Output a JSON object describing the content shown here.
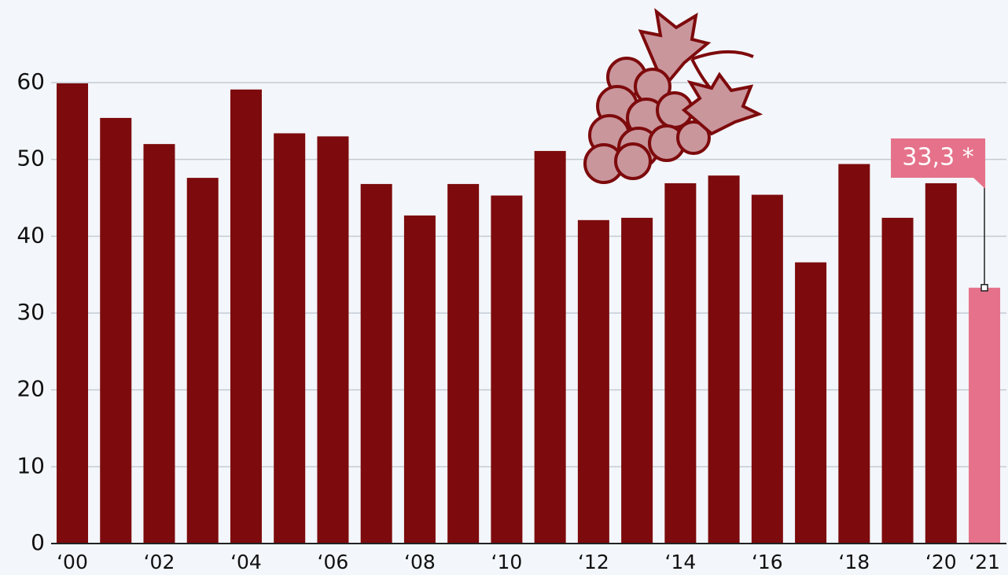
{
  "chart_data": {
    "type": "bar",
    "categories": [
      "‘00",
      null,
      "‘02",
      null,
      "‘04",
      null,
      "‘06",
      null,
      "‘08",
      null,
      "‘10",
      null,
      "‘12",
      null,
      "‘14",
      null,
      "‘16",
      null,
      "‘18",
      null,
      "‘20",
      "‘21"
    ],
    "values": [
      59.9,
      55.4,
      52.0,
      47.6,
      59.1,
      53.4,
      53.0,
      46.8,
      42.7,
      46.8,
      45.3,
      51.1,
      42.1,
      42.4,
      46.9,
      47.9,
      45.4,
      36.6,
      49.4,
      42.4,
      46.9,
      33.3
    ],
    "value_labels": [
      null,
      null,
      null,
      null,
      null,
      null,
      null,
      null,
      null,
      null,
      null,
      null,
      null,
      null,
      null,
      null,
      null,
      null,
      null,
      null,
      null,
      "33,3 *"
    ],
    "colors": [
      "#7d0a0c",
      "#7d0a0c",
      "#7d0a0c",
      "#7d0a0c",
      "#7d0a0c",
      "#7d0a0c",
      "#7d0a0c",
      "#7d0a0c",
      "#7d0a0c",
      "#7d0a0c",
      "#7d0a0c",
      "#7d0a0c",
      "#7d0a0c",
      "#7d0a0c",
      "#7d0a0c",
      "#7d0a0c",
      "#7d0a0c",
      "#7d0a0c",
      "#7d0a0c",
      "#7d0a0c",
      "#7d0a0c",
      "#e5728a"
    ],
    "ylim": [
      0,
      60
    ],
    "yticks": [
      0,
      10,
      20,
      30,
      40,
      50,
      60
    ],
    "grid": true
  }
}
